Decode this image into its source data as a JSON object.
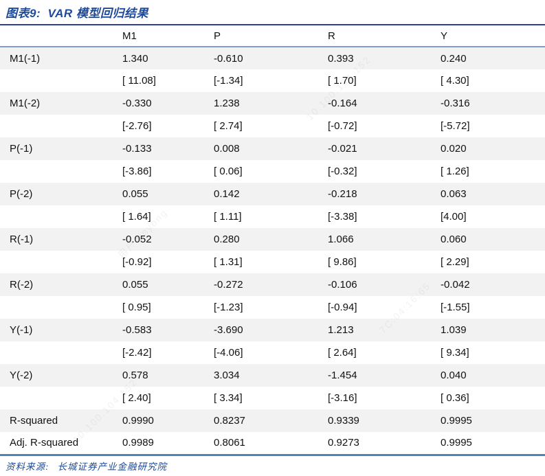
{
  "page": {
    "title": "图表9:  VAR 模型回归结果",
    "source_label": "资料来源:",
    "source_text": "长城证券产业金融研究院"
  },
  "colors": {
    "title_blue": "#1d4a9a",
    "top_border": "#28418a",
    "header_underline": "#7e9cc8",
    "bottom_border": "#4f81bd",
    "row_stripe": "#f2f2f2"
  },
  "watermark": {
    "fragments": [
      "10.100.104.152",
      "7C:04:16:65",
      "用户qinyong"
    ]
  },
  "table": {
    "corner_label": "",
    "columns": [
      "M1",
      "P",
      "R",
      "Y"
    ],
    "rows": [
      {
        "label": "M1(-1)",
        "cells": [
          "1.340",
          "-0.610",
          "0.393",
          "0.240"
        ]
      },
      {
        "label": "",
        "cells": [
          "[ 11.08]",
          "[-1.34]",
          "[ 1.70]",
          "[ 4.30]"
        ]
      },
      {
        "label": "M1(-2)",
        "cells": [
          "-0.330",
          "1.238",
          "-0.164",
          "-0.316"
        ]
      },
      {
        "label": "",
        "cells": [
          "[-2.76]",
          "[ 2.74]",
          "[-0.72]",
          "[-5.72]"
        ]
      },
      {
        "label": "P(-1)",
        "cells": [
          "-0.133",
          "0.008",
          "-0.021",
          "0.020"
        ]
      },
      {
        "label": "",
        "cells": [
          "[-3.86]",
          "[ 0.06]",
          "[-0.32]",
          "[ 1.26]"
        ]
      },
      {
        "label": "P(-2)",
        "cells": [
          "0.055",
          "0.142",
          "-0.218",
          "0.063"
        ]
      },
      {
        "label": "",
        "cells": [
          "[ 1.64]",
          "[ 1.11]",
          "[-3.38]",
          "[4.00]"
        ]
      },
      {
        "label": "R(-1)",
        "cells": [
          "-0.052",
          "0.280",
          "1.066",
          "0.060"
        ]
      },
      {
        "label": "",
        "cells": [
          "[-0.92]",
          "[ 1.31]",
          "[ 9.86]",
          "[ 2.29]"
        ]
      },
      {
        "label": "R(-2)",
        "cells": [
          "0.055",
          "-0.272",
          "-0.106",
          "-0.042"
        ]
      },
      {
        "label": "",
        "cells": [
          "[ 0.95]",
          "[-1.23]",
          "[-0.94]",
          "[-1.55]"
        ]
      },
      {
        "label": "Y(-1)",
        "cells": [
          "-0.583",
          "-3.690",
          "1.213",
          "1.039"
        ]
      },
      {
        "label": "",
        "cells": [
          "[-2.42]",
          "[-4.06]",
          "[ 2.64]",
          "[ 9.34]"
        ]
      },
      {
        "label": "Y(-2)",
        "cells": [
          "0.578",
          "3.034",
          "-1.454",
          "0.040"
        ]
      },
      {
        "label": "",
        "cells": [
          "[ 2.40]",
          "[ 3.34]",
          "[-3.16]",
          "[ 0.36]"
        ]
      },
      {
        "label": "R-squared",
        "cells": [
          "0.9990",
          "0.8237",
          "0.9339",
          "0.9995"
        ]
      },
      {
        "label": "Adj. R-squared",
        "cells": [
          "0.9989",
          "0.8061",
          "0.9273",
          "0.9995"
        ]
      }
    ]
  }
}
